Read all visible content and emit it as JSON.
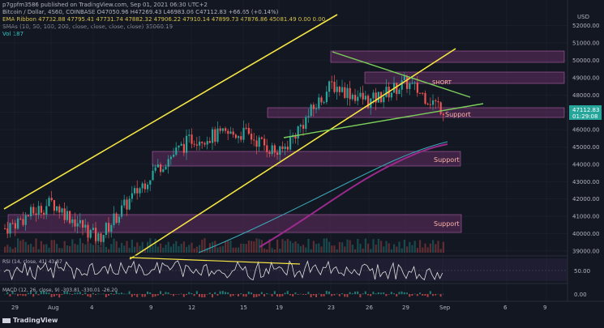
{
  "header": {
    "publisher": "p7gpfm3586 published on TradingView.com, Sep 01, 2021 06:30 UTC+2",
    "symbol_line": "Bitcoin / Dollar, 4S60, COINBASE O47050.96 H47269.43 L46983.06 C47112.83 +66.65 (+0.14%)",
    "ema_ribbon": "EMA Ribbon 47732.88 47795.41 47731.74 47882.32 47906.22 47910.14 47899.73 47876.86 45081.49 0.00 0.00",
    "smas": "SMAs (10, 50, 100, 200, close, close, close, close) 35060.19",
    "vol": "Vol 187"
  },
  "price_axis": {
    "currency": "USD",
    "ticks": [
      "52000.00",
      "51000.00",
      "50000.00",
      "49000.00",
      "48000.00",
      "47000.00",
      "46000.00",
      "45000.00",
      "44000.00",
      "43000.00",
      "42000.00",
      "41000.00",
      "40000.00",
      "39000.00"
    ],
    "last_price": "47112.83",
    "countdown": "01:29:08"
  },
  "rsi": {
    "label": "RSI (14, close, 41) 43.87",
    "level": "50.00"
  },
  "macd": {
    "label": "MACD (12, 26, close, 9) -303.81 -330.01 -26.20",
    "level": "0.00"
  },
  "time_axis": [
    "29",
    "Aug",
    "4",
    "9",
    "12",
    "15",
    "19",
    "23",
    "26",
    "29",
    "Sep",
    "6",
    "9"
  ],
  "annotations": {
    "short": "SHORT",
    "support1": "Support",
    "support2": "Support",
    "support3": "Support"
  },
  "watermark": "TradingView",
  "colors": {
    "up": "#26a69a",
    "down": "#ef5350",
    "trend": "#f5e642",
    "green_line": "#7ccf5a",
    "zone": "#8e3a86",
    "bg": "#131722"
  },
  "chart_data": {
    "type": "line",
    "title": "Bitcoin / Dollar, 4S60, COINBASE",
    "x": [
      "29",
      "Aug",
      "4",
      "9",
      "12",
      "15",
      "19",
      "23",
      "26",
      "29",
      "Sep"
    ],
    "series": [
      {
        "values": [
          40300,
          41800,
          39700,
          43600,
          45500,
          45800,
          44600,
          48600,
          47600,
          48700,
          47113
        ]
      }
    ],
    "ylim": [
      38900,
      52500
    ],
    "support_zones": [
      [
        46600,
        47400
      ],
      [
        43800,
        44500
      ],
      [
        39900,
        40800
      ]
    ],
    "resistance_zones": [
      [
        50000,
        50600
      ],
      [
        48800,
        49400
      ]
    ]
  }
}
